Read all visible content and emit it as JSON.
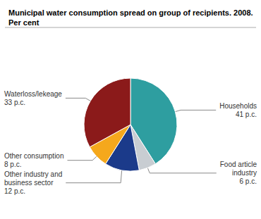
{
  "chart_data": {
    "type": "pie",
    "title": "Municipal water consumption spread on group of recipients. 2008.\nPer cent",
    "categories": [
      "Households\n41 p.c.",
      "Food article\nindustry\n6 p.c.",
      "Other industry and\nbusiness sector\n12 p.c.",
      "Other consumption\n8 p.c.",
      "Waterloss/lekeage\n33 p.c."
    ],
    "values": [
      41,
      6,
      12,
      8,
      33
    ],
    "colors": [
      "#2E9EA0",
      "#C8CDD2",
      "#1B3A8A",
      "#F5A81C",
      "#8B1A1A"
    ]
  }
}
